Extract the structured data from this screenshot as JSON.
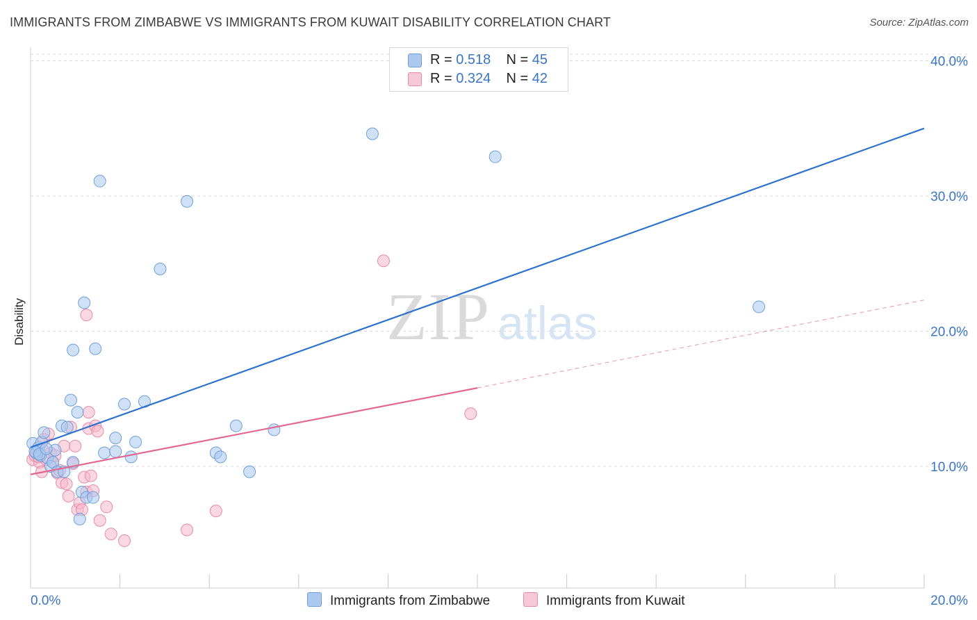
{
  "title": "IMMIGRANTS FROM ZIMBABWE VS IMMIGRANTS FROM KUWAIT DISABILITY CORRELATION CHART",
  "source": "Source: ZipAtlas.com",
  "watermark": {
    "zip": "ZIP",
    "atlas": "atlas"
  },
  "legend": {
    "r_label": "R =",
    "n_label": "N =",
    "rows": [
      {
        "r": "0.518",
        "n": "45",
        "color": "#aac8f0"
      },
      {
        "r": "0.324",
        "n": "42",
        "color": "#f6b8cb"
      }
    ]
  },
  "bottom_legend": {
    "zimbabwe": "Immigrants from Zimbabwe",
    "kuwait": "Immigrants from Kuwait"
  },
  "colors": {
    "zimbabwe_fill": "#aac8f0",
    "zimbabwe_stroke": "#6f9fd8",
    "zimbabwe_line": "#2e72cc",
    "kuwait_fill": "#f6b8cb",
    "kuwait_stroke": "#e68aa6",
    "kuwait_line": "#e06891",
    "tick_label": "#3a75c4"
  },
  "chart_data": {
    "type": "scatter",
    "title": "IMMIGRANTS FROM ZIMBABWE VS IMMIGRANTS FROM KUWAIT DISABILITY CORRELATION CHART",
    "xlabel": "",
    "ylabel": "Disability",
    "xlim": [
      0,
      20
    ],
    "ylim": [
      1.0,
      41.0
    ],
    "x_tick_labels": [
      "0.0%",
      "20.0%"
    ],
    "y_ticks": [
      10,
      20,
      30,
      40
    ],
    "y_tick_labels": [
      "10.0%",
      "20.0%",
      "30.0%",
      "40.0%"
    ],
    "grid": "horizontal dashed",
    "legend_position": "top-center",
    "series": [
      {
        "name": "Immigrants from Zimbabwe",
        "points": [
          [
            0.05,
            11.7
          ],
          [
            0.12,
            11.0
          ],
          [
            0.18,
            11.4
          ],
          [
            0.22,
            10.8
          ],
          [
            0.25,
            11.8
          ],
          [
            0.3,
            12.5
          ],
          [
            0.38,
            10.6
          ],
          [
            0.45,
            10.0
          ],
          [
            0.5,
            10.3
          ],
          [
            0.55,
            11.2
          ],
          [
            0.6,
            9.6
          ],
          [
            0.7,
            13.0
          ],
          [
            0.75,
            9.6
          ],
          [
            0.82,
            12.9
          ],
          [
            0.9,
            14.9
          ],
          [
            0.95,
            10.3
          ],
          [
            0.95,
            18.6
          ],
          [
            1.05,
            14.0
          ],
          [
            1.1,
            6.1
          ],
          [
            1.15,
            8.1
          ],
          [
            1.2,
            22.1
          ],
          [
            1.25,
            7.7
          ],
          [
            1.4,
            7.7
          ],
          [
            1.45,
            18.7
          ],
          [
            1.55,
            31.1
          ],
          [
            1.65,
            11.0
          ],
          [
            1.9,
            11.1
          ],
          [
            1.9,
            12.1
          ],
          [
            2.1,
            14.6
          ],
          [
            2.25,
            10.7
          ],
          [
            2.35,
            11.8
          ],
          [
            2.55,
            14.8
          ],
          [
            2.9,
            24.6
          ],
          [
            3.5,
            29.6
          ],
          [
            4.15,
            11.0
          ],
          [
            4.25,
            10.7
          ],
          [
            4.6,
            13.0
          ],
          [
            4.9,
            9.6
          ],
          [
            5.45,
            12.7
          ],
          [
            7.65,
            34.6
          ],
          [
            10.4,
            32.9
          ],
          [
            16.3,
            21.8
          ],
          [
            0.1,
            11.1
          ],
          [
            0.2,
            10.9
          ],
          [
            0.35,
            11.3
          ]
        ],
        "trend": {
          "x0": 0,
          "y0": 11.4,
          "x1": 20,
          "y1": 35.0
        }
      },
      {
        "name": "Immigrants from Kuwait",
        "points": [
          [
            0.05,
            10.5
          ],
          [
            0.1,
            10.8
          ],
          [
            0.15,
            11.2
          ],
          [
            0.2,
            10.3
          ],
          [
            0.25,
            9.6
          ],
          [
            0.3,
            12.0
          ],
          [
            0.35,
            10.5
          ],
          [
            0.4,
            12.4
          ],
          [
            0.45,
            11.0
          ],
          [
            0.5,
            10.3
          ],
          [
            0.55,
            10.8
          ],
          [
            0.6,
            9.5
          ],
          [
            0.65,
            9.7
          ],
          [
            0.7,
            8.8
          ],
          [
            0.75,
            11.5
          ],
          [
            0.8,
            8.7
          ],
          [
            0.85,
            7.8
          ],
          [
            0.9,
            12.9
          ],
          [
            0.95,
            10.2
          ],
          [
            1.0,
            11.5
          ],
          [
            1.05,
            6.8
          ],
          [
            1.1,
            7.3
          ],
          [
            1.15,
            6.8
          ],
          [
            1.2,
            9.2
          ],
          [
            1.25,
            21.2
          ],
          [
            1.25,
            8.1
          ],
          [
            1.3,
            14.0
          ],
          [
            1.3,
            12.8
          ],
          [
            1.35,
            9.3
          ],
          [
            1.4,
            8.2
          ],
          [
            1.45,
            13.0
          ],
          [
            1.5,
            12.6
          ],
          [
            1.55,
            6.0
          ],
          [
            1.7,
            7.0
          ],
          [
            1.8,
            5.0
          ],
          [
            2.1,
            4.5
          ],
          [
            3.5,
            5.3
          ],
          [
            4.15,
            6.7
          ],
          [
            7.9,
            25.2
          ],
          [
            9.85,
            13.9
          ],
          [
            0.18,
            10.7
          ],
          [
            0.28,
            11.2
          ]
        ],
        "trend": {
          "x0": 0,
          "y0": 9.4,
          "x1": 10,
          "y1": 15.8
        },
        "trend_extension": {
          "x0": 10,
          "y0": 15.8,
          "x1": 20,
          "y1": 22.3
        }
      }
    ]
  }
}
